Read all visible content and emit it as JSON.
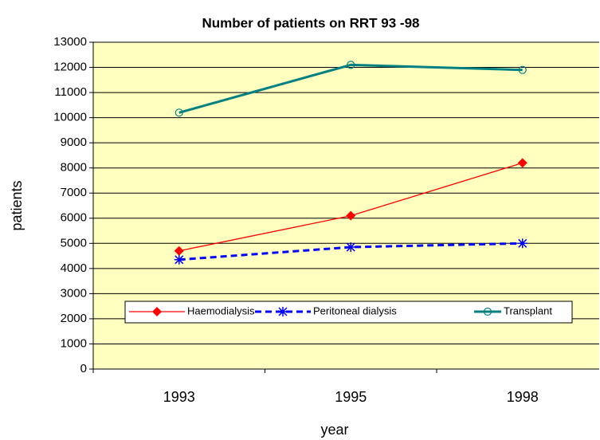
{
  "chart_data": {
    "type": "line",
    "title": "Number of patients on RRT 93 -98",
    "x_label": "year",
    "y_label": "patients",
    "categories": [
      "1993",
      "1995",
      "1998"
    ],
    "series": [
      {
        "name": "Haemodialysis",
        "color": "#ff0000",
        "marker": "diamond",
        "dashed": false,
        "values": [
          4700,
          6100,
          8200
        ]
      },
      {
        "name": "Peritoneal dialysis",
        "color": "#0000ff",
        "marker": "asterisk",
        "dashed": true,
        "values": [
          4350,
          4850,
          5000
        ]
      },
      {
        "name": "Transplant",
        "color": "#008080",
        "marker": "circle",
        "dashed": false,
        "values": [
          10200,
          12100,
          11900
        ]
      }
    ],
    "ylim": [
      0,
      13000
    ],
    "yticks": [
      0,
      1000,
      2000,
      3000,
      4000,
      5000,
      6000,
      7000,
      8000,
      9000,
      10000,
      11000,
      12000,
      13000
    ],
    "grid": true,
    "plot_background": "#ffffc0"
  }
}
